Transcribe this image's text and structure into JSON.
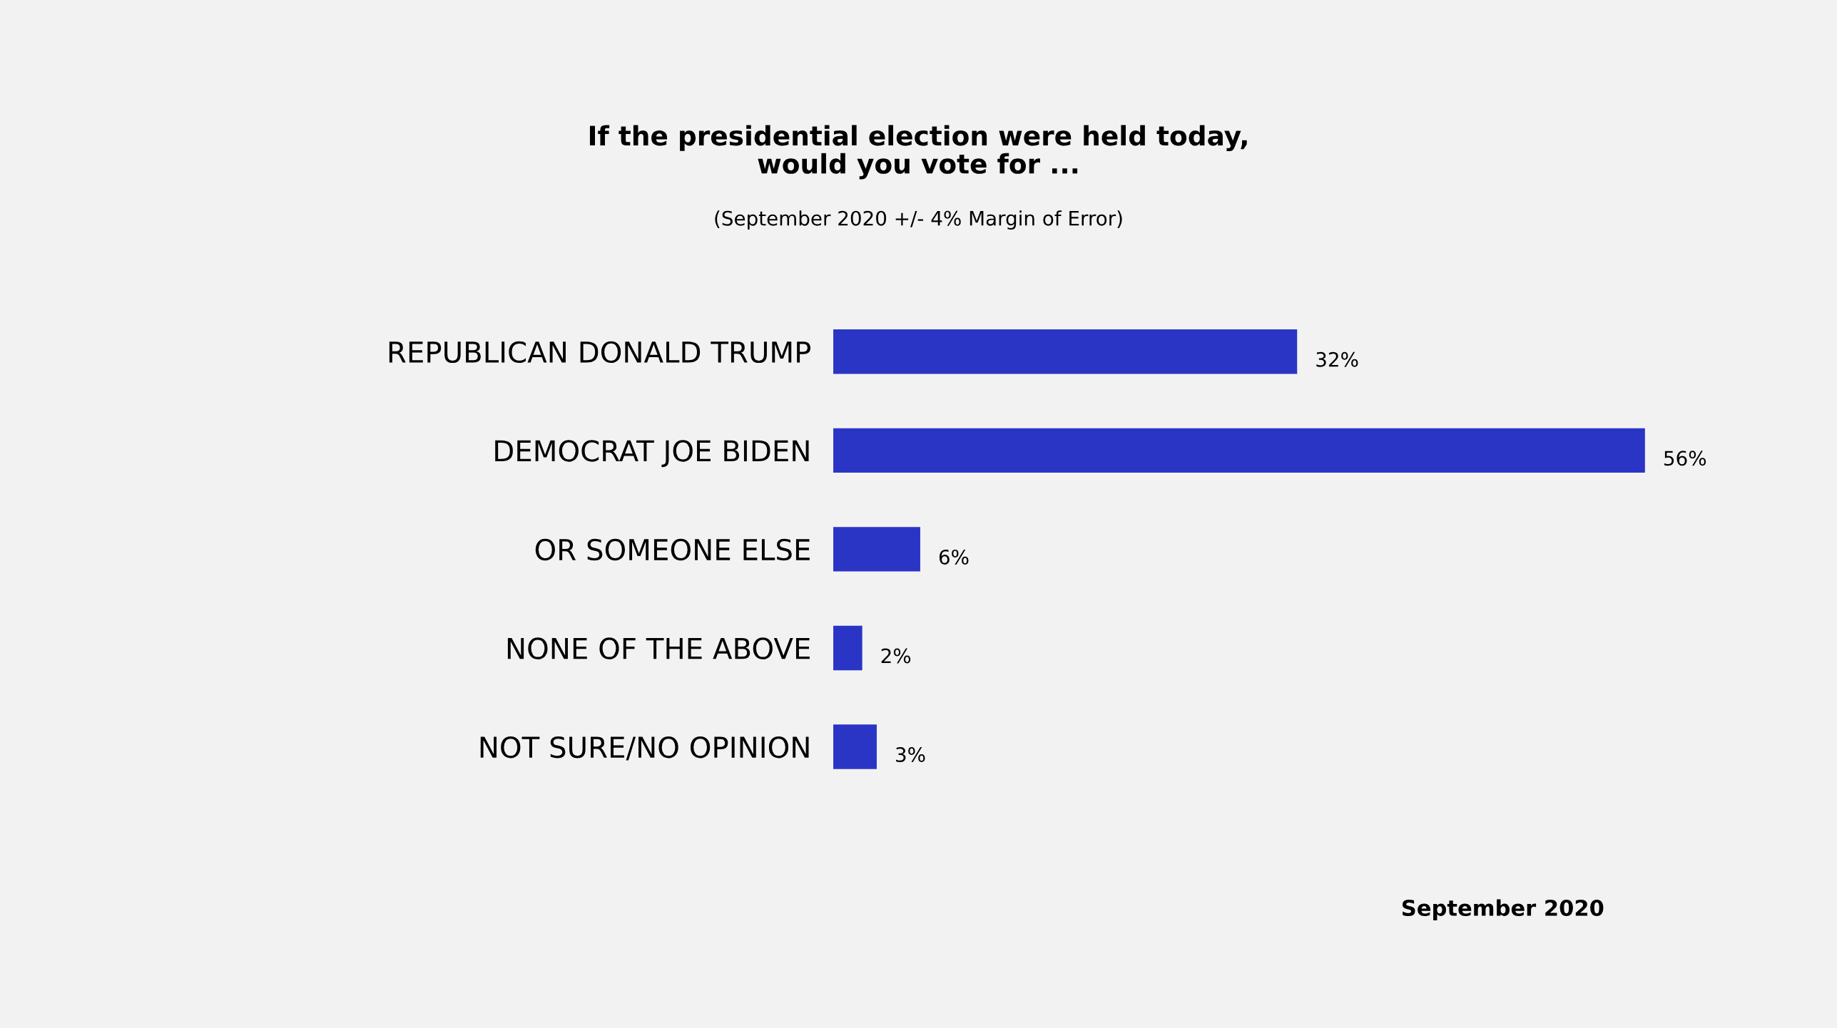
{
  "chart_data": {
    "type": "bar",
    "orientation": "horizontal",
    "title": "If the presidential election were held today,\nwould you vote for ...",
    "subtitle": "(September 2020 +/- 4% Margin of Error)",
    "categories": [
      "REPUBLICAN DONALD TRUMP",
      "DEMOCRAT JOE BIDEN",
      "OR SOMEONE ELSE",
      "NONE OF THE ABOVE",
      "NOT SURE/NO OPINION"
    ],
    "values": [
      32,
      56,
      6,
      2,
      3
    ],
    "value_labels": [
      "32%",
      "56%",
      "6%",
      "2%",
      "3%"
    ],
    "color": "#2a35c6",
    "annotations": [
      "September 2020"
    ]
  }
}
